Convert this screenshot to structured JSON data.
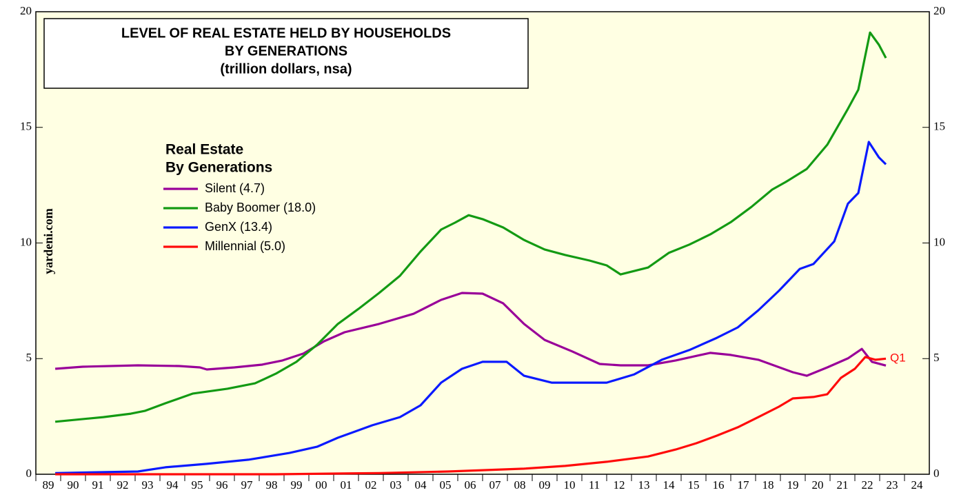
{
  "chart_data": {
    "type": "line",
    "title": [
      "LEVEL OF REAL ESTATE HELD BY HOUSEHOLDS",
      "BY GENERATIONS",
      "(trillion dollars, nsa)"
    ],
    "legend_title": [
      "Real Estate",
      "By Generations"
    ],
    "watermark": "yardeni.com",
    "end_label": "Q1",
    "xlim": [
      1989,
      2025
    ],
    "ylim": [
      0,
      20
    ],
    "yticks": [
      0,
      5,
      10,
      15,
      20
    ],
    "right_axis": true,
    "xticks": [
      {
        "value": 1989,
        "label": "89"
      },
      {
        "value": 1990,
        "label": "90"
      },
      {
        "value": 1991,
        "label": "91"
      },
      {
        "value": 1992,
        "label": "92"
      },
      {
        "value": 1993,
        "label": "93"
      },
      {
        "value": 1994,
        "label": "94"
      },
      {
        "value": 1995,
        "label": "95"
      },
      {
        "value": 1996,
        "label": "96"
      },
      {
        "value": 1997,
        "label": "97"
      },
      {
        "value": 1998,
        "label": "98"
      },
      {
        "value": 1999,
        "label": "99"
      },
      {
        "value": 2000,
        "label": "00"
      },
      {
        "value": 2001,
        "label": "01"
      },
      {
        "value": 2002,
        "label": "02"
      },
      {
        "value": 2003,
        "label": "03"
      },
      {
        "value": 2004,
        "label": "04"
      },
      {
        "value": 2005,
        "label": "05"
      },
      {
        "value": 2006,
        "label": "06"
      },
      {
        "value": 2007,
        "label": "07"
      },
      {
        "value": 2008,
        "label": "08"
      },
      {
        "value": 2009,
        "label": "09"
      },
      {
        "value": 2010,
        "label": "10"
      },
      {
        "value": 2011,
        "label": "11"
      },
      {
        "value": 2012,
        "label": "12"
      },
      {
        "value": 2013,
        "label": "13"
      },
      {
        "value": 2014,
        "label": "14"
      },
      {
        "value": 2015,
        "label": "15"
      },
      {
        "value": 2016,
        "label": "16"
      },
      {
        "value": 2017,
        "label": "17"
      },
      {
        "value": 2018,
        "label": "18"
      },
      {
        "value": 2019,
        "label": "19"
      },
      {
        "value": 2020,
        "label": "20"
      },
      {
        "value": 2021,
        "label": "21"
      },
      {
        "value": 2022,
        "label": "22"
      },
      {
        "value": 2023,
        "label": "23"
      },
      {
        "value": 2024,
        "label": "24"
      }
    ],
    "series": [
      {
        "name": "Silent (4.7)",
        "color": "#990099",
        "x": [
          1989.78,
          1990.89,
          1993.11,
          1994.78,
          1995.61,
          1995.89,
          1997.0,
          1998.11,
          1998.94,
          1999.78,
          2000.61,
          2001.44,
          2002.83,
          2004.22,
          2005.33,
          2006.17,
          2007.0,
          2007.83,
          2008.67,
          2009.5,
          2010.61,
          2011.72,
          2012.56,
          2013.67,
          2014.78,
          2016.17,
          2017.0,
          2018.11,
          2019.5,
          2020.06,
          2020.89,
          2021.72,
          2022.28,
          2022.69,
          2023.25
        ],
        "values": [
          4.56,
          4.65,
          4.71,
          4.68,
          4.62,
          4.53,
          4.62,
          4.74,
          4.92,
          5.22,
          5.75,
          6.14,
          6.5,
          6.94,
          7.54,
          7.84,
          7.81,
          7.39,
          6.5,
          5.81,
          5.31,
          4.77,
          4.71,
          4.71,
          4.92,
          5.25,
          5.16,
          4.95,
          4.41,
          4.26,
          4.62,
          5.01,
          5.42,
          4.86,
          4.7
        ]
      },
      {
        "name": "Baby Boomer (18.0)",
        "color": "#139a13",
        "x": [
          1989.78,
          1991.72,
          1992.83,
          1993.39,
          1994.22,
          1995.33,
          1996.72,
          1997.83,
          1998.67,
          1999.5,
          2000.33,
          2001.17,
          2002.0,
          2002.83,
          2003.67,
          2004.5,
          2005.33,
          2005.89,
          2006.44,
          2007.0,
          2007.83,
          2008.67,
          2009.5,
          2010.33,
          2011.31,
          2012.0,
          2012.56,
          2013.67,
          2014.5,
          2015.33,
          2016.17,
          2017.0,
          2017.83,
          2018.67,
          2019.22,
          2020.06,
          2020.89,
          2021.72,
          2022.14,
          2022.42,
          2022.61,
          2022.97,
          2023.25
        ],
        "values": [
          2.27,
          2.47,
          2.62,
          2.74,
          3.07,
          3.49,
          3.7,
          3.93,
          4.35,
          4.86,
          5.6,
          6.5,
          7.15,
          7.84,
          8.58,
          9.63,
          10.58,
          10.88,
          11.2,
          11.03,
          10.67,
          10.13,
          9.72,
          9.48,
          9.24,
          9.03,
          8.64,
          8.94,
          9.57,
          9.93,
          10.37,
          10.9,
          11.56,
          12.31,
          12.64,
          13.2,
          14.25,
          15.8,
          16.63,
          18.1,
          19.1,
          18.57,
          18.0
        ]
      },
      {
        "name": "GenX (13.4)",
        "color": "#0a1aff",
        "x": [
          1989.78,
          1993.11,
          1994.22,
          1995.89,
          1997.56,
          1999.22,
          2000.33,
          2001.17,
          2002.56,
          2003.67,
          2004.5,
          2005.33,
          2006.17,
          2007.0,
          2007.97,
          2008.67,
          2009.78,
          2011.17,
          2012.0,
          2013.11,
          2014.22,
          2015.33,
          2016.44,
          2017.28,
          2018.11,
          2018.94,
          2019.78,
          2020.33,
          2021.17,
          2021.72,
          2022.14,
          2022.56,
          2022.97,
          2023.25
        ],
        "values": [
          0.05,
          0.12,
          0.3,
          0.45,
          0.63,
          0.92,
          1.19,
          1.58,
          2.12,
          2.47,
          2.98,
          3.96,
          4.56,
          4.86,
          4.86,
          4.26,
          3.96,
          3.96,
          3.96,
          4.32,
          4.95,
          5.37,
          5.9,
          6.35,
          7.09,
          7.93,
          8.88,
          9.09,
          10.07,
          11.7,
          12.16,
          14.37,
          13.7,
          13.4
        ]
      },
      {
        "name": "Millennial (5.0)",
        "color": "#ff0a0a",
        "x": [
          1989.78,
          1998.67,
          2002.83,
          2005.61,
          2008.67,
          2010.33,
          2012.0,
          2013.67,
          2014.78,
          2015.61,
          2016.44,
          2017.28,
          2018.11,
          2018.94,
          2019.5,
          2020.33,
          2020.89,
          2021.44,
          2022.0,
          2022.42,
          2022.83,
          2023.25
        ],
        "values": [
          0.0,
          0.0,
          0.05,
          0.12,
          0.24,
          0.36,
          0.54,
          0.77,
          1.07,
          1.34,
          1.67,
          2.03,
          2.47,
          2.92,
          3.28,
          3.34,
          3.46,
          4.17,
          4.56,
          5.07,
          4.95,
          5.0
        ]
      }
    ]
  }
}
